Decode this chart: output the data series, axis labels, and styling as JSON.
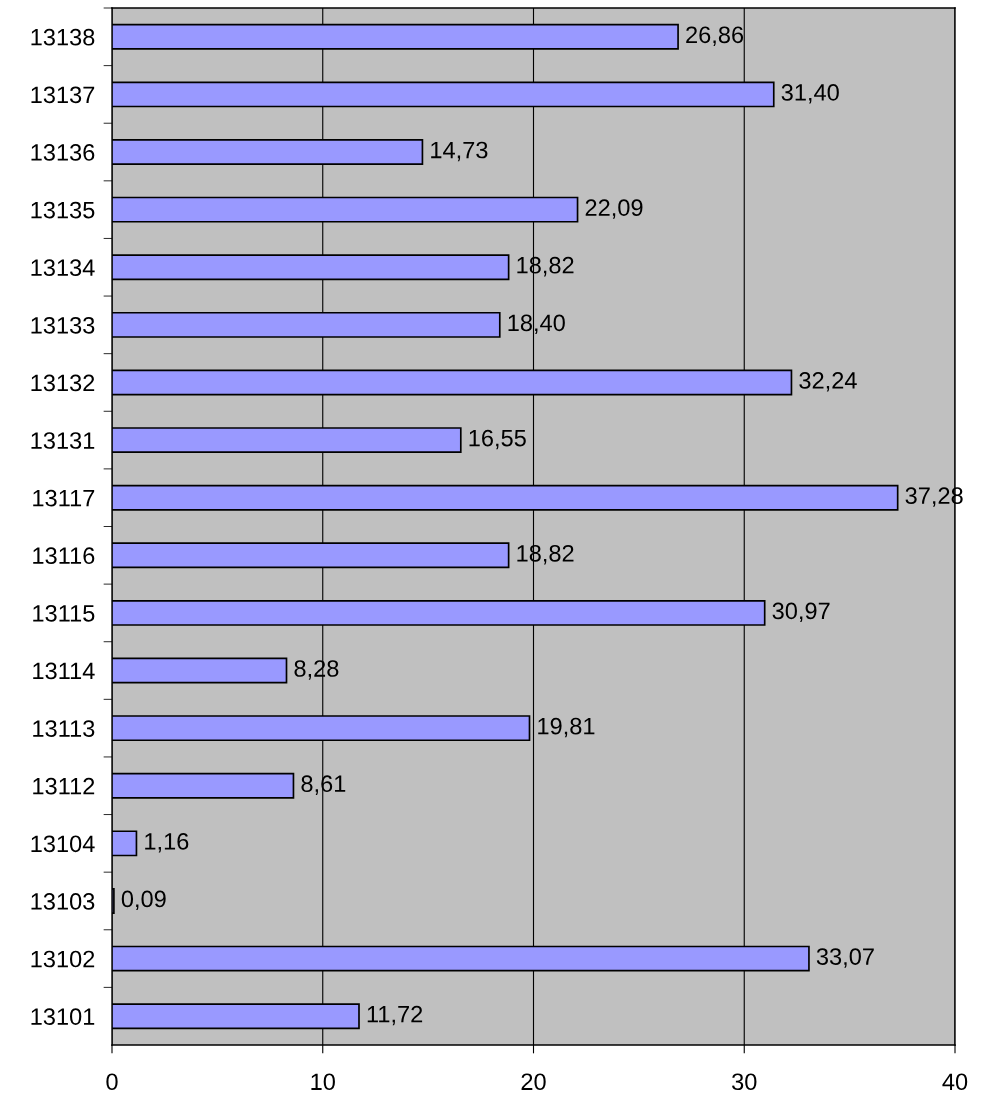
{
  "chart_data": {
    "type": "bar",
    "orientation": "horizontal",
    "categories": [
      "13138",
      "13137",
      "13136",
      "13135",
      "13134",
      "13133",
      "13132",
      "13131",
      "13117",
      "13116",
      "13115",
      "13114",
      "13113",
      "13112",
      "13104",
      "13103",
      "13102",
      "13101"
    ],
    "values": [
      26.86,
      31.4,
      14.73,
      22.09,
      18.82,
      18.4,
      32.24,
      16.55,
      37.28,
      18.82,
      30.97,
      8.28,
      19.81,
      8.61,
      1.16,
      0.09,
      33.07,
      11.72
    ],
    "value_labels": [
      "26,86",
      "31,40",
      "14,73",
      "22,09",
      "18,82",
      "18,40",
      "32,24",
      "16,55",
      "37,28",
      "18,82",
      "30,97",
      "8,28",
      "19,81",
      "8,61",
      "1,16",
      "0,09",
      "33,07",
      "11,72"
    ],
    "color": "#9999ff",
    "xlim": [
      0,
      40
    ],
    "xticks": [
      0,
      10,
      20,
      30,
      40
    ],
    "grid": "x"
  }
}
